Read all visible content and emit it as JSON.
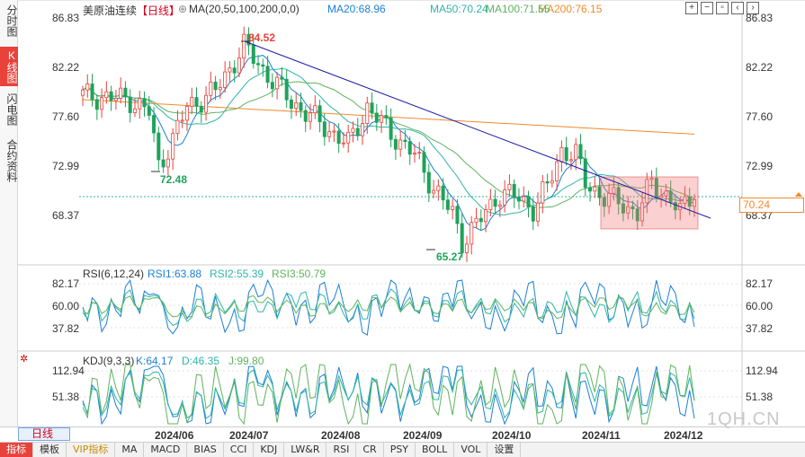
{
  "side_tabs": [
    {
      "label": "分时图",
      "active": false
    },
    {
      "label": "K线图",
      "active": true
    },
    {
      "label": "闪电图",
      "active": false
    },
    {
      "label": "合约资料",
      "active": false
    }
  ],
  "header": {
    "instrument": "美原油连续",
    "period": "【日线】",
    "ma_label": "MA(20,50,100,200,0,0)",
    "ma20": "MA20:68.96",
    "ma50": "MA50:70.24",
    "ma100": "MA100:71.55",
    "ma200": "MA200:76.15"
  },
  "toolbar_icons": [
    "zoom-in-icon",
    "zoom-out-icon",
    "fit-icon",
    "move-left-icon",
    "move-right-icon"
  ],
  "price_axis": [
    "86.83",
    "82.22",
    "77.60",
    "72.99",
    "68.37"
  ],
  "price_marker": "70.24",
  "annotations": {
    "high": "84.52",
    "low1": "72.48",
    "low2": "65.27"
  },
  "rsi": {
    "label": "RSI(6,12,24)",
    "rsi1": "RSI1:63.88",
    "rsi2": "RSI2:55.39",
    "rsi3": "RSI3:50.79",
    "axis": [
      "82.17",
      "60.00",
      "37.82"
    ]
  },
  "kdj": {
    "label": "KDJ(9,3,3)",
    "k": "K:64.17",
    "d": "D:46.35",
    "j": "J:99.80",
    "axis": [
      "112.94",
      "51.38"
    ]
  },
  "dates": [
    "2024/06",
    "2024/07",
    "2024/08",
    "2024/09",
    "2024/10",
    "2024/11",
    "2024/12"
  ],
  "period_button": "日线",
  "bottom_tabs": [
    {
      "label": "指标",
      "active": true
    },
    {
      "label": "模板",
      "active": false
    },
    {
      "label": "VIP指标",
      "active": false,
      "vip": true
    },
    {
      "label": "MA",
      "active": false
    },
    {
      "label": "MACD",
      "active": false
    },
    {
      "label": "BIAS",
      "active": false
    },
    {
      "label": "CCI",
      "active": false
    },
    {
      "label": "KDJ",
      "active": false
    },
    {
      "label": "LW&R",
      "active": false
    },
    {
      "label": "RSI",
      "active": false
    },
    {
      "label": "CR",
      "active": false
    },
    {
      "label": "PSY",
      "active": false
    },
    {
      "label": "BOLL",
      "active": false
    },
    {
      "label": "VOL",
      "active": false
    },
    {
      "label": "设置",
      "active": false
    }
  ],
  "watermark": "1QH.CN",
  "colors": {
    "up": "#e8423a",
    "down": "#1ea35a",
    "ma20": "#1c7fd6",
    "ma50": "#2fb6a6",
    "ma100": "#5fb35f",
    "ma200": "#f08a2c",
    "trendline": "#1a1aa8",
    "rsi1": "#1c7fd6",
    "rsi2": "#2fb6a6",
    "rsi3": "#5fb35f",
    "accent": "#e8423a"
  }
}
